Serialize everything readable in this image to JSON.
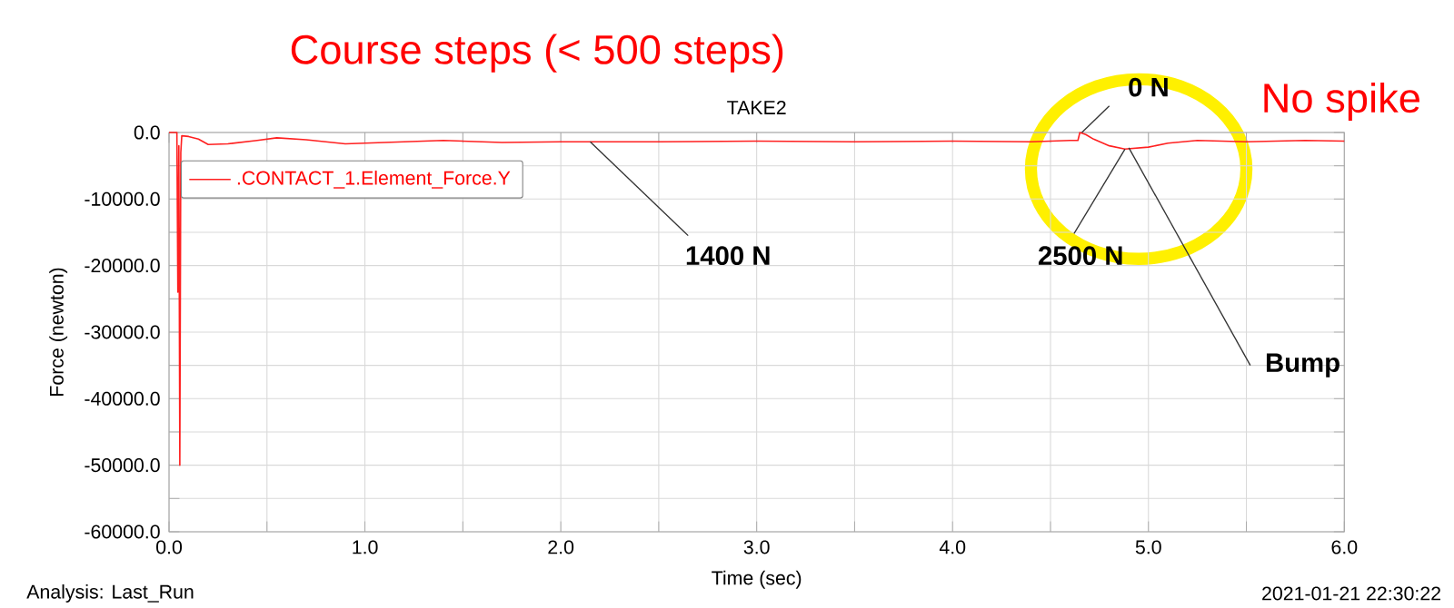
{
  "chart_data": {
    "type": "line",
    "title": "TAKE2",
    "xlabel": "Time (sec)",
    "ylabel": "Force (newton)",
    "xlim": [
      0,
      6
    ],
    "ylim": [
      -60000,
      0
    ],
    "xticks": [
      {
        "value": 0,
        "label": "0.0"
      },
      {
        "value": 0.5,
        "label": null
      },
      {
        "value": 1,
        "label": "1.0"
      },
      {
        "value": 1.5,
        "label": null
      },
      {
        "value": 2,
        "label": "2.0"
      },
      {
        "value": 2.5,
        "label": null
      },
      {
        "value": 3,
        "label": "3.0"
      },
      {
        "value": 3.5,
        "label": null
      },
      {
        "value": 4,
        "label": "4.0"
      },
      {
        "value": 4.5,
        "label": null
      },
      {
        "value": 5,
        "label": "5.0"
      },
      {
        "value": 5.5,
        "label": null
      },
      {
        "value": 6,
        "label": "6.0"
      }
    ],
    "yticks": [
      {
        "value": 0,
        "label": "0.0"
      },
      {
        "value": -5000,
        "label": null
      },
      {
        "value": -10000,
        "label": "-10000.0"
      },
      {
        "value": -15000,
        "label": null
      },
      {
        "value": -20000,
        "label": "-20000.0"
      },
      {
        "value": -25000,
        "label": null
      },
      {
        "value": -30000,
        "label": "-30000.0"
      },
      {
        "value": -35000,
        "label": null
      },
      {
        "value": -40000,
        "label": "-40000.0"
      },
      {
        "value": -45000,
        "label": null
      },
      {
        "value": -50000,
        "label": "-50000.0"
      },
      {
        "value": -55000,
        "label": null
      },
      {
        "value": -60000,
        "label": "-60000.0"
      }
    ],
    "grid": true,
    "legend": "top left",
    "marker": "none",
    "line_style": "solid",
    "series": [
      {
        "name": ".CONTACT_1.Element_Force.Y",
        "color": "#ff2020",
        "x": [
          0,
          0.04,
          0.045,
          0.05,
          0.055,
          0.06,
          0.065,
          0.1,
          0.15,
          0.2,
          0.3,
          0.45,
          0.55,
          0.7,
          0.9,
          1.1,
          1.4,
          1.7,
          2.0,
          2.5,
          3.0,
          3.5,
          4.0,
          4.4,
          4.6,
          4.64,
          4.65,
          4.68,
          4.72,
          4.8,
          4.88,
          5.0,
          5.1,
          5.25,
          5.5,
          5.8,
          6.0
        ],
        "values": [
          0,
          0,
          -24000,
          -2000,
          -50000,
          -3000,
          -500,
          -600,
          -1000,
          -1800,
          -1700,
          -1200,
          -800,
          -1100,
          -1700,
          -1500,
          -1200,
          -1500,
          -1400,
          -1400,
          -1300,
          -1400,
          -1300,
          -1400,
          -1200,
          -1200,
          0,
          -300,
          -1000,
          -2000,
          -2500,
          -2200,
          -1600,
          -1200,
          -1400,
          -1200,
          -1300
        ]
      }
    ],
    "annotations": [
      {
        "text": "1400 N",
        "x": 2.15,
        "y": -1400
      },
      {
        "text": "0 N",
        "x": 4.66,
        "y": 0
      },
      {
        "text": "2500 N",
        "x": 4.88,
        "y": -2500
      },
      {
        "text": "Bump",
        "x": 4.9,
        "y": -2300
      },
      "Course steps (< 500 steps)",
      "No spike",
      "Analysis:  Last_Run",
      "2021-01-21 22:30:22"
    ]
  }
}
